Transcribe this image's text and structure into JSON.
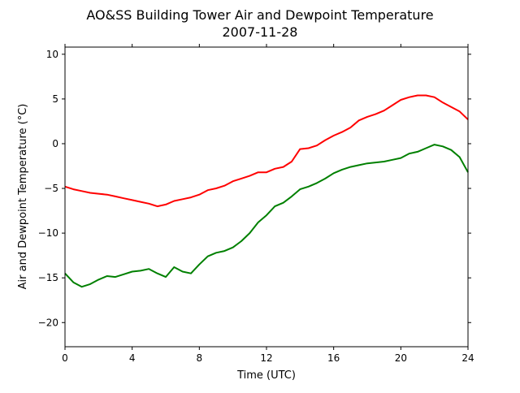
{
  "chart_data": {
    "type": "line",
    "title": "AO&SS Building Tower Air and Dewpoint Temperature",
    "subtitle": "2007-11-28",
    "xlabel": "Time (UTC)",
    "ylabel": "Air and Dewpoint Temperature (°C)",
    "xlim": [
      0,
      24
    ],
    "ylim": [
      -22.7,
      10.8
    ],
    "xticks": [
      0,
      4,
      8,
      12,
      16,
      20,
      24
    ],
    "yticks": [
      -20,
      -15,
      -10,
      -5,
      0,
      5,
      10
    ],
    "grid": false,
    "legend": "none",
    "series": [
      {
        "color": "#ff0000",
        "x": [
          0,
          0.5,
          1,
          1.5,
          2,
          2.5,
          3,
          3.5,
          4,
          4.5,
          5,
          5.5,
          6,
          6.5,
          7,
          7.5,
          8,
          8.5,
          9,
          9.5,
          10,
          10.5,
          11,
          11.5,
          12,
          12.5,
          13,
          13.5,
          14,
          14.5,
          15,
          15.5,
          16,
          16.5,
          17,
          17.5,
          18,
          18.5,
          19,
          19.5,
          20,
          20.5,
          21,
          21.5,
          22,
          22.5,
          23,
          23.5,
          24
        ],
        "y": [
          -4.8,
          -5.1,
          -5.3,
          -5.5,
          -5.6,
          -5.7,
          -5.9,
          -6.1,
          -6.3,
          -6.5,
          -6.7,
          -7.0,
          -6.8,
          -6.4,
          -6.2,
          -6.0,
          -5.7,
          -5.2,
          -5.0,
          -4.7,
          -4.2,
          -3.9,
          -3.6,
          -3.2,
          -3.2,
          -2.8,
          -2.6,
          -2.0,
          -0.6,
          -0.5,
          -0.2,
          0.4,
          0.9,
          1.3,
          1.8,
          2.6,
          3.0,
          3.3,
          3.7,
          4.3,
          4.9,
          5.2,
          5.4,
          5.4,
          5.2,
          4.6,
          4.1,
          3.6,
          2.7
        ]
      },
      {
        "color": "#008000",
        "x": [
          0,
          0.5,
          1,
          1.5,
          2,
          2.5,
          3,
          3.5,
          4,
          4.5,
          5,
          5.5,
          6,
          6.5,
          7,
          7.5,
          8,
          8.5,
          9,
          9.5,
          10,
          10.5,
          11,
          11.5,
          12,
          12.5,
          13,
          13.5,
          14,
          14.5,
          15,
          15.5,
          16,
          16.5,
          17,
          17.5,
          18,
          18.5,
          19,
          19.5,
          20,
          20.5,
          21,
          21.5,
          22,
          22.5,
          23,
          23.5,
          24
        ],
        "y": [
          -14.5,
          -15.5,
          -16.0,
          -15.7,
          -15.2,
          -14.8,
          -14.9,
          -14.6,
          -14.3,
          -14.2,
          -14.0,
          -14.5,
          -14.9,
          -13.8,
          -14.3,
          -14.5,
          -13.5,
          -12.6,
          -12.2,
          -12.0,
          -11.6,
          -10.9,
          -10.0,
          -8.8,
          -8.0,
          -7.0,
          -6.6,
          -5.9,
          -5.1,
          -4.8,
          -4.4,
          -3.9,
          -3.3,
          -2.9,
          -2.6,
          -2.4,
          -2.2,
          -2.1,
          -2.0,
          -1.8,
          -1.6,
          -1.1,
          -0.9,
          -0.5,
          -0.1,
          -0.3,
          -0.7,
          -1.5,
          -3.2
        ]
      }
    ]
  }
}
